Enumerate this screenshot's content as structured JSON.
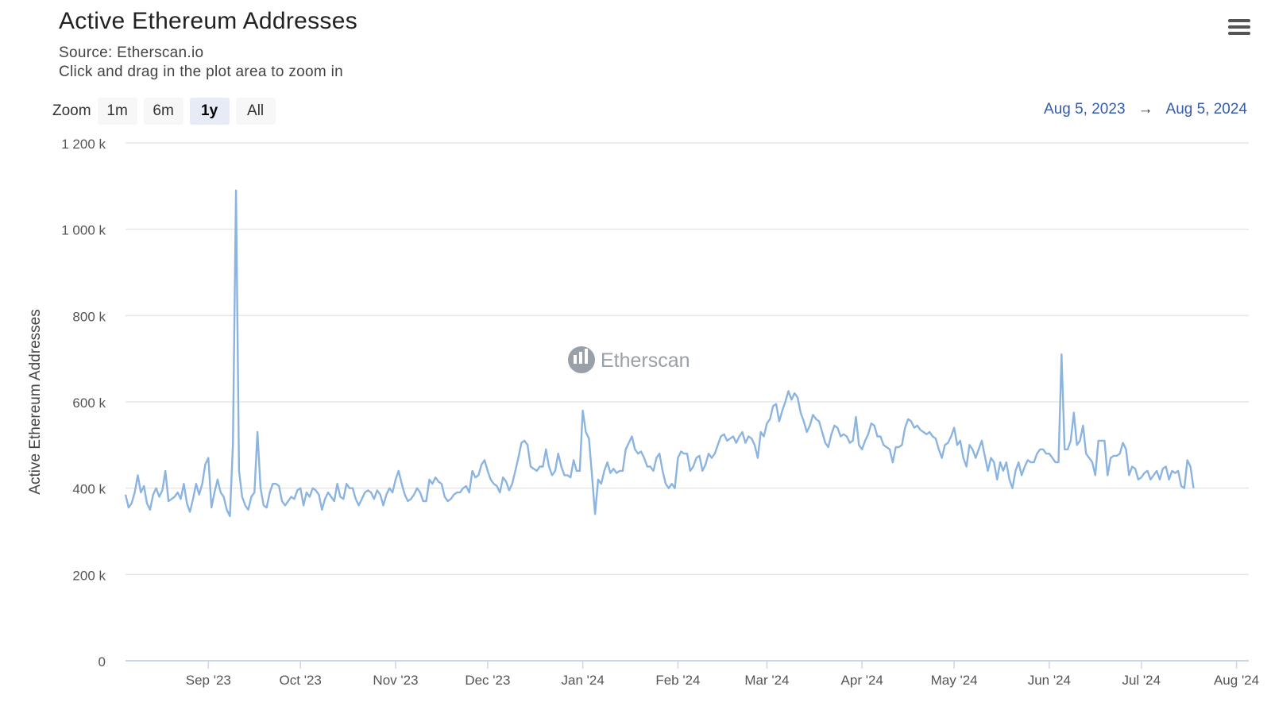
{
  "title": "Active Ethereum Addresses",
  "source": "Source: Etherscan.io",
  "hint": "Click and drag in the plot area to zoom in",
  "menu_icon": "hamburger-menu-icon",
  "zoom": {
    "label": "Zoom",
    "buttons": [
      {
        "label": "1m",
        "active": false
      },
      {
        "label": "6m",
        "active": false
      },
      {
        "label": "1y",
        "active": true
      },
      {
        "label": "All",
        "active": false
      }
    ]
  },
  "range": {
    "from": "Aug 5, 2023",
    "arrow": "→",
    "to": "Aug 5, 2024"
  },
  "watermark": "Etherscan",
  "colors": {
    "line": "#8bb4e0",
    "grid": "#e6e6e6",
    "accent": "#335cad"
  },
  "chart_data": {
    "type": "line",
    "ylabel": "Active Ethereum Addresses",
    "ylim": [
      0,
      1200000
    ],
    "yticks": [
      {
        "value": 0,
        "label": "0"
      },
      {
        "value": 200000,
        "label": "200 k"
      },
      {
        "value": 400000,
        "label": "400 k"
      },
      {
        "value": 600000,
        "label": "600 k"
      },
      {
        "value": 800000,
        "label": "800 k"
      },
      {
        "value": 1000000,
        "label": "1 000 k"
      },
      {
        "value": 1200000,
        "label": "1 200 k"
      }
    ],
    "xlim": [
      "2023-08-05",
      "2024-08-05"
    ],
    "xticks": [
      {
        "date": "2023-09-01",
        "label": "Sep '23"
      },
      {
        "date": "2023-10-01",
        "label": "Oct '23"
      },
      {
        "date": "2023-11-01",
        "label": "Nov '23"
      },
      {
        "date": "2023-12-01",
        "label": "Dec '23"
      },
      {
        "date": "2024-01-01",
        "label": "Jan '24"
      },
      {
        "date": "2024-02-01",
        "label": "Feb '24"
      },
      {
        "date": "2024-03-01",
        "label": "Mar '24"
      },
      {
        "date": "2024-04-01",
        "label": "Apr '24"
      },
      {
        "date": "2024-05-01",
        "label": "May '24"
      },
      {
        "date": "2024-06-01",
        "label": "Jun '24"
      },
      {
        "date": "2024-07-01",
        "label": "Jul '24"
      },
      {
        "date": "2024-08-01",
        "label": "Aug '24"
      }
    ],
    "series": [
      {
        "start": "2023-08-05",
        "step_days": 1,
        "values": [
          385000,
          355000,
          365000,
          390000,
          430000,
          390000,
          405000,
          365000,
          350000,
          385000,
          400000,
          380000,
          395000,
          440000,
          370000,
          375000,
          380000,
          390000,
          375000,
          410000,
          365000,
          345000,
          375000,
          410000,
          385000,
          410000,
          455000,
          470000,
          355000,
          390000,
          420000,
          390000,
          380000,
          350000,
          335000,
          500000,
          1090000,
          440000,
          380000,
          360000,
          350000,
          380000,
          390000,
          530000,
          400000,
          360000,
          355000,
          390000,
          410000,
          410000,
          405000,
          370000,
          360000,
          370000,
          380000,
          375000,
          395000,
          400000,
          360000,
          390000,
          380000,
          400000,
          395000,
          385000,
          350000,
          375000,
          390000,
          380000,
          370000,
          410000,
          380000,
          375000,
          410000,
          400000,
          400000,
          375000,
          360000,
          375000,
          390000,
          395000,
          390000,
          375000,
          395000,
          385000,
          360000,
          385000,
          400000,
          390000,
          420000,
          440000,
          410000,
          385000,
          370000,
          375000,
          385000,
          400000,
          390000,
          370000,
          370000,
          420000,
          410000,
          425000,
          415000,
          410000,
          380000,
          370000,
          375000,
          385000,
          390000,
          390000,
          400000,
          405000,
          390000,
          440000,
          425000,
          430000,
          455000,
          465000,
          440000,
          420000,
          410000,
          405000,
          390000,
          425000,
          415000,
          395000,
          410000,
          440000,
          470000,
          505000,
          510000,
          500000,
          450000,
          445000,
          440000,
          450000,
          450000,
          490000,
          450000,
          430000,
          440000,
          480000,
          450000,
          430000,
          430000,
          425000,
          465000,
          440000,
          440000,
          580000,
          530000,
          515000,
          430000,
          340000,
          420000,
          410000,
          440000,
          460000,
          435000,
          445000,
          435000,
          440000,
          440000,
          490000,
          505000,
          520000,
          490000,
          480000,
          485000,
          470000,
          450000,
          450000,
          440000,
          470000,
          480000,
          440000,
          410000,
          400000,
          410000,
          400000,
          470000,
          485000,
          480000,
          480000,
          440000,
          450000,
          470000,
          475000,
          440000,
          455000,
          480000,
          470000,
          480000,
          500000,
          520000,
          525000,
          510000,
          515000,
          520000,
          505000,
          520000,
          530000,
          505000,
          520000,
          515000,
          500000,
          470000,
          530000,
          520000,
          550000,
          560000,
          590000,
          595000,
          555000,
          580000,
          600000,
          625000,
          605000,
          620000,
          610000,
          575000,
          555000,
          530000,
          545000,
          570000,
          560000,
          555000,
          530000,
          505000,
          495000,
          525000,
          545000,
          540000,
          520000,
          525000,
          520000,
          505000,
          510000,
          565000,
          500000,
          490000,
          510000,
          525000,
          550000,
          545000,
          520000,
          520000,
          500000,
          495000,
          490000,
          460000,
          495000,
          495000,
          500000,
          540000,
          560000,
          555000,
          540000,
          545000,
          535000,
          530000,
          525000,
          530000,
          520000,
          515000,
          490000,
          470000,
          500000,
          505000,
          520000,
          540000,
          500000,
          510000,
          470000,
          450000,
          500000,
          490000,
          470000,
          490000,
          510000,
          475000,
          440000,
          470000,
          460000,
          420000,
          460000,
          440000,
          460000,
          420000,
          400000,
          440000,
          460000,
          430000,
          450000,
          465000,
          460000,
          460000,
          480000,
          490000,
          490000,
          480000,
          480000,
          470000,
          460000,
          460000,
          710000,
          490000,
          490000,
          510000,
          575000,
          500000,
          510000,
          545000,
          480000,
          470000,
          460000,
          430000,
          510000,
          510000,
          510000,
          430000,
          470000,
          475000,
          475000,
          480000,
          505000,
          490000,
          430000,
          450000,
          445000,
          420000,
          425000,
          435000,
          440000,
          420000,
          430000,
          440000,
          420000,
          445000,
          450000,
          420000,
          440000,
          435000,
          440000,
          405000,
          400000,
          465000,
          450000,
          400000
        ]
      }
    ]
  }
}
